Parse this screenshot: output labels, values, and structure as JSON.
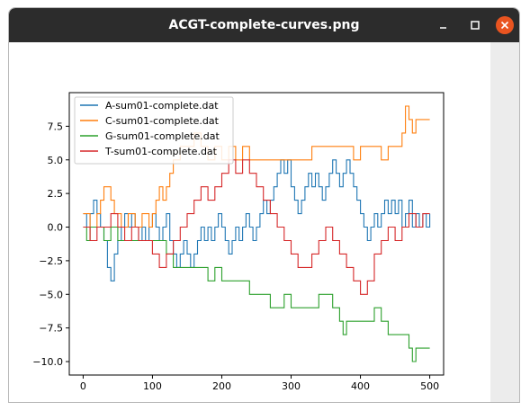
{
  "window": {
    "title": "ACGT-complete-curves.png",
    "controls": {
      "minimize_icon": "minimize-icon",
      "maximize_icon": "maximize-icon",
      "close_icon": "close-icon"
    },
    "accent_close": "#e95420"
  },
  "chart_data": {
    "type": "line",
    "xlim": [
      -20,
      520
    ],
    "ylim": [
      -11,
      10
    ],
    "xticks": [
      0,
      100,
      200,
      300,
      400,
      500
    ],
    "xtick_labels": [
      "0",
      "100",
      "200",
      "300",
      "400",
      "500"
    ],
    "yticks": [
      7.5,
      5.0,
      2.5,
      0.0,
      -2.5,
      -5.0,
      -7.5,
      -10.0
    ],
    "ytick_labels": [
      "7.5",
      "5.0",
      "2.5",
      "0.0",
      "−2.5",
      "−5.0",
      "−7.5",
      "−10.0"
    ],
    "legend_position": "top-left",
    "grid": false,
    "series": [
      {
        "name": "A-sum01-complete.dat",
        "color": "#1f77b4",
        "points": [
          [
            0,
            1
          ],
          [
            5,
            0
          ],
          [
            10,
            1
          ],
          [
            15,
            2
          ],
          [
            20,
            1
          ],
          [
            25,
            0
          ],
          [
            30,
            -1
          ],
          [
            35,
            -3
          ],
          [
            40,
            -4
          ],
          [
            45,
            -2
          ],
          [
            50,
            -1
          ],
          [
            55,
            0
          ],
          [
            60,
            1
          ],
          [
            65,
            0
          ],
          [
            70,
            1
          ],
          [
            75,
            0
          ],
          [
            80,
            -1
          ],
          [
            85,
            0
          ],
          [
            90,
            -1
          ],
          [
            95,
            0
          ],
          [
            100,
            1
          ],
          [
            105,
            0
          ],
          [
            110,
            -1
          ],
          [
            115,
            0
          ],
          [
            120,
            1
          ],
          [
            125,
            -1
          ],
          [
            130,
            -2
          ],
          [
            135,
            -3
          ],
          [
            140,
            -2
          ],
          [
            145,
            -1
          ],
          [
            150,
            -2
          ],
          [
            155,
            -3
          ],
          [
            160,
            -2
          ],
          [
            165,
            -1
          ],
          [
            170,
            0
          ],
          [
            175,
            -1
          ],
          [
            180,
            0
          ],
          [
            185,
            -1
          ],
          [
            190,
            0
          ],
          [
            195,
            1
          ],
          [
            200,
            0
          ],
          [
            205,
            -1
          ],
          [
            210,
            -2
          ],
          [
            215,
            -1
          ],
          [
            220,
            0
          ],
          [
            225,
            -1
          ],
          [
            230,
            0
          ],
          [
            235,
            1
          ],
          [
            240,
            0
          ],
          [
            245,
            -1
          ],
          [
            250,
            0
          ],
          [
            255,
            1
          ],
          [
            260,
            2
          ],
          [
            265,
            1
          ],
          [
            270,
            2
          ],
          [
            275,
            3
          ],
          [
            280,
            4
          ],
          [
            285,
            5
          ],
          [
            290,
            4
          ],
          [
            295,
            5
          ],
          [
            300,
            3
          ],
          [
            305,
            2
          ],
          [
            310,
            1
          ],
          [
            315,
            2
          ],
          [
            320,
            3
          ],
          [
            325,
            4
          ],
          [
            330,
            3
          ],
          [
            335,
            4
          ],
          [
            340,
            3
          ],
          [
            345,
            2
          ],
          [
            350,
            3
          ],
          [
            355,
            4
          ],
          [
            360,
            5
          ],
          [
            365,
            4
          ],
          [
            370,
            3
          ],
          [
            375,
            4
          ],
          [
            380,
            5
          ],
          [
            385,
            4
          ],
          [
            390,
            3
          ],
          [
            395,
            2
          ],
          [
            400,
            1
          ],
          [
            405,
            0
          ],
          [
            410,
            -1
          ],
          [
            415,
            0
          ],
          [
            420,
            1
          ],
          [
            425,
            0
          ],
          [
            430,
            1
          ],
          [
            435,
            2
          ],
          [
            440,
            1
          ],
          [
            445,
            2
          ],
          [
            450,
            1
          ],
          [
            455,
            2
          ],
          [
            460,
            0
          ],
          [
            465,
            1
          ],
          [
            470,
            2
          ],
          [
            475,
            0
          ],
          [
            480,
            1
          ],
          [
            485,
            0
          ],
          [
            490,
            1
          ],
          [
            495,
            0
          ],
          [
            500,
            1
          ]
        ]
      },
      {
        "name": "C-sum01-complete.dat",
        "color": "#ff7f0e",
        "points": [
          [
            0,
            1
          ],
          [
            10,
            0
          ],
          [
            20,
            1
          ],
          [
            25,
            2
          ],
          [
            30,
            3
          ],
          [
            40,
            2
          ],
          [
            45,
            1
          ],
          [
            55,
            0
          ],
          [
            65,
            1
          ],
          [
            75,
            0
          ],
          [
            85,
            1
          ],
          [
            95,
            0
          ],
          [
            100,
            1
          ],
          [
            105,
            2
          ],
          [
            110,
            3
          ],
          [
            115,
            2
          ],
          [
            120,
            3
          ],
          [
            125,
            4
          ],
          [
            130,
            5
          ],
          [
            140,
            6
          ],
          [
            150,
            6
          ],
          [
            160,
            7
          ],
          [
            170,
            6
          ],
          [
            180,
            5
          ],
          [
            190,
            6
          ],
          [
            200,
            5
          ],
          [
            210,
            6
          ],
          [
            220,
            5
          ],
          [
            230,
            6
          ],
          [
            240,
            5
          ],
          [
            250,
            5
          ],
          [
            260,
            5
          ],
          [
            270,
            5
          ],
          [
            280,
            5
          ],
          [
            290,
            5
          ],
          [
            300,
            5
          ],
          [
            310,
            5
          ],
          [
            320,
            5
          ],
          [
            330,
            6
          ],
          [
            340,
            6
          ],
          [
            350,
            6
          ],
          [
            360,
            6
          ],
          [
            370,
            6
          ],
          [
            380,
            6
          ],
          [
            390,
            5
          ],
          [
            400,
            6
          ],
          [
            410,
            6
          ],
          [
            420,
            6
          ],
          [
            430,
            5
          ],
          [
            440,
            6
          ],
          [
            450,
            6
          ],
          [
            460,
            7
          ],
          [
            465,
            9
          ],
          [
            470,
            8
          ],
          [
            475,
            7
          ],
          [
            480,
            8
          ],
          [
            490,
            8
          ],
          [
            500,
            8
          ]
        ]
      },
      {
        "name": "G-sum01-complete.dat",
        "color": "#2ca02c",
        "points": [
          [
            0,
            0
          ],
          [
            5,
            -1
          ],
          [
            10,
            0
          ],
          [
            20,
            0
          ],
          [
            30,
            -1
          ],
          [
            40,
            0
          ],
          [
            50,
            -1
          ],
          [
            60,
            -1
          ],
          [
            70,
            -1
          ],
          [
            80,
            -1
          ],
          [
            90,
            -1
          ],
          [
            100,
            -1
          ],
          [
            110,
            -1
          ],
          [
            120,
            -2
          ],
          [
            130,
            -3
          ],
          [
            140,
            -3
          ],
          [
            150,
            -3
          ],
          [
            160,
            -3
          ],
          [
            170,
            -3
          ],
          [
            180,
            -4
          ],
          [
            190,
            -3
          ],
          [
            200,
            -4
          ],
          [
            210,
            -4
          ],
          [
            220,
            -4
          ],
          [
            230,
            -4
          ],
          [
            240,
            -5
          ],
          [
            250,
            -5
          ],
          [
            260,
            -5
          ],
          [
            270,
            -6
          ],
          [
            280,
            -6
          ],
          [
            290,
            -5
          ],
          [
            300,
            -6
          ],
          [
            310,
            -6
          ],
          [
            320,
            -6
          ],
          [
            330,
            -6
          ],
          [
            340,
            -5
          ],
          [
            350,
            -5
          ],
          [
            360,
            -6
          ],
          [
            370,
            -7
          ],
          [
            375,
            -8
          ],
          [
            380,
            -7
          ],
          [
            390,
            -7
          ],
          [
            400,
            -7
          ],
          [
            410,
            -7
          ],
          [
            420,
            -6
          ],
          [
            430,
            -7
          ],
          [
            440,
            -8
          ],
          [
            450,
            -8
          ],
          [
            460,
            -8
          ],
          [
            470,
            -9
          ],
          [
            475,
            -10
          ],
          [
            480,
            -9
          ],
          [
            490,
            -9
          ],
          [
            500,
            -9
          ]
        ]
      },
      {
        "name": "T-sum01-complete.dat",
        "color": "#d62728",
        "points": [
          [
            0,
            0
          ],
          [
            10,
            -1
          ],
          [
            20,
            0
          ],
          [
            30,
            0
          ],
          [
            40,
            1
          ],
          [
            50,
            0
          ],
          [
            60,
            -1
          ],
          [
            70,
            0
          ],
          [
            80,
            -1
          ],
          [
            90,
            -1
          ],
          [
            100,
            -2
          ],
          [
            110,
            -3
          ],
          [
            120,
            -2
          ],
          [
            130,
            -1
          ],
          [
            140,
            0
          ],
          [
            150,
            1
          ],
          [
            160,
            2
          ],
          [
            170,
            3
          ],
          [
            180,
            2
          ],
          [
            190,
            3
          ],
          [
            200,
            4
          ],
          [
            210,
            5
          ],
          [
            220,
            4
          ],
          [
            230,
            5
          ],
          [
            240,
            4
          ],
          [
            250,
            3
          ],
          [
            260,
            2
          ],
          [
            270,
            1
          ],
          [
            280,
            0
          ],
          [
            290,
            -1
          ],
          [
            300,
            -2
          ],
          [
            310,
            -3
          ],
          [
            320,
            -3
          ],
          [
            330,
            -2
          ],
          [
            340,
            -1
          ],
          [
            350,
            0
          ],
          [
            360,
            -1
          ],
          [
            370,
            -2
          ],
          [
            380,
            -3
          ],
          [
            390,
            -4
          ],
          [
            400,
            -5
          ],
          [
            410,
            -4
          ],
          [
            420,
            -2
          ],
          [
            430,
            -1
          ],
          [
            440,
            0
          ],
          [
            450,
            -1
          ],
          [
            460,
            0
          ],
          [
            470,
            1
          ],
          [
            480,
            0
          ],
          [
            490,
            1
          ],
          [
            500,
            1
          ]
        ]
      }
    ]
  }
}
